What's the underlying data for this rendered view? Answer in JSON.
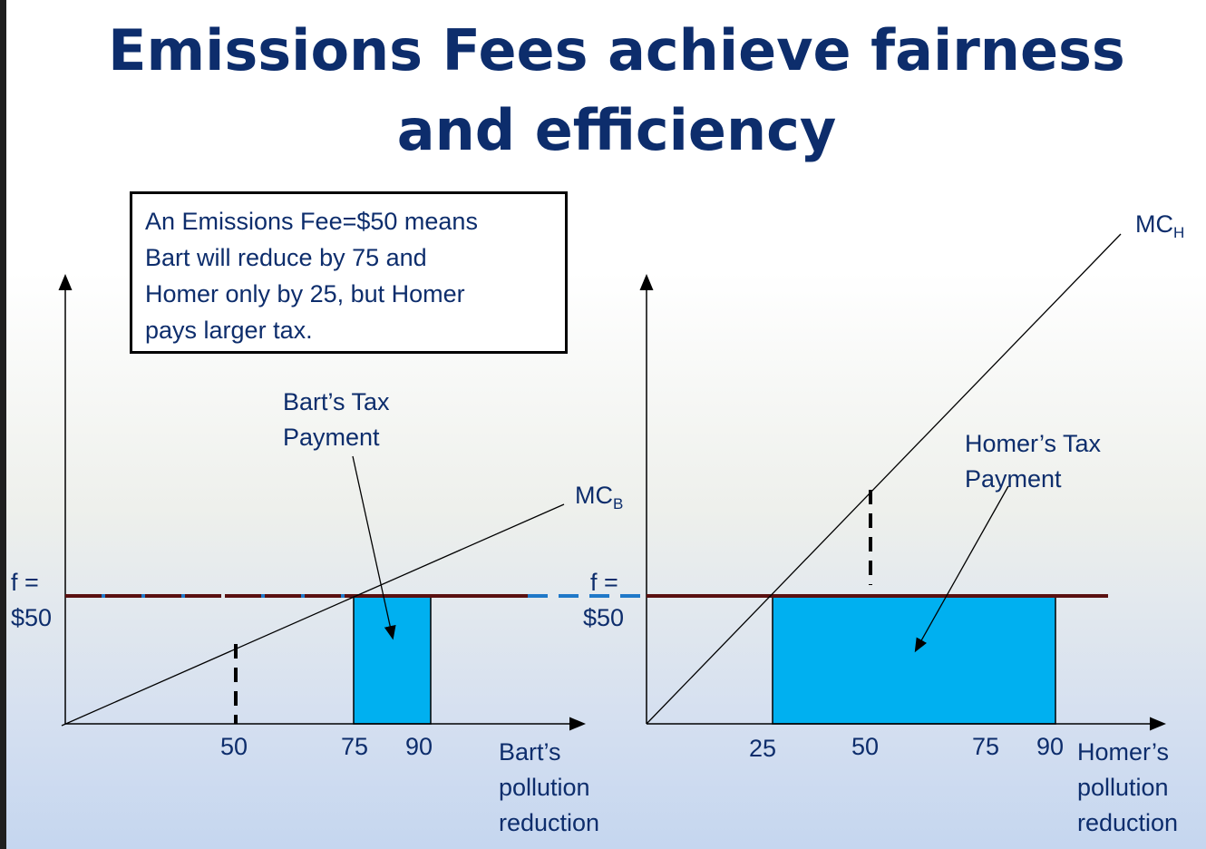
{
  "title": "Emissions Fees achieve fairness and efficiency",
  "note": {
    "line1": "An Emissions Fee=$50 means",
    "line2": "Bart will reduce by 75 and",
    "line3": "Homer only by 25, but Homer",
    "line4": "pays larger tax."
  },
  "left_chart": {
    "fee_label_line1": "f =",
    "fee_label_line2": "$50",
    "curve_label": "MC",
    "curve_label_sub": "B",
    "tax_label_line1": "Bart’s Tax",
    "tax_label_line2": "Payment",
    "ticks": [
      "50",
      "75",
      "90"
    ],
    "xlabel_line1": "Bart’s",
    "xlabel_line2": "pollution",
    "xlabel_line3": "reduction"
  },
  "right_chart": {
    "fee_label_line1": "f =",
    "fee_label_line2": "$50",
    "curve_label": "MC",
    "curve_label_sub": "H",
    "tax_label_line1": "Homer’s Tax",
    "tax_label_line2": "Payment",
    "ticks": [
      "25",
      "50",
      "75",
      "90"
    ],
    "xlabel_line1": "Homer’s",
    "xlabel_line2": "pollution",
    "xlabel_line3": "reduction"
  },
  "colors": {
    "title": "#0d2d6c",
    "text": "#0d2d6c",
    "fee_line": "#5a1010",
    "fee_dash": "#1f78c8",
    "tax_fill": "#00b0f0"
  }
}
